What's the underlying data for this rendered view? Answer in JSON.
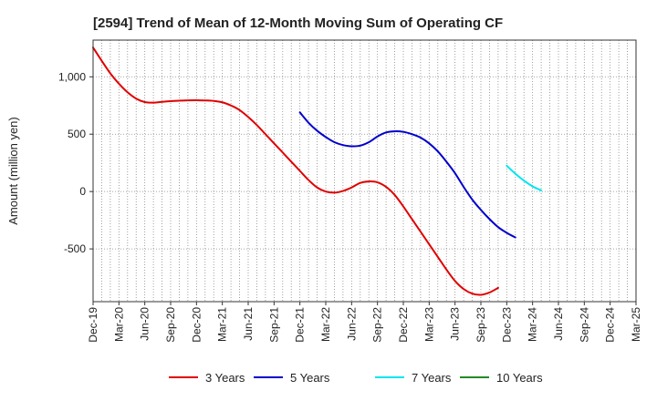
{
  "chart_data": {
    "type": "line",
    "title": "[2594]  Trend of Mean of 12-Month Moving Sum of Operating CF",
    "xlabel": "",
    "ylabel": "Amount (million yen)",
    "ylim": [
      -960,
      1320
    ],
    "yticks": [
      -500,
      0,
      500,
      1000
    ],
    "ytick_labels": [
      "-500",
      "0",
      "500",
      "1,000"
    ],
    "grid": true,
    "legend_position": "bottom",
    "x_months": [
      "Dec-19",
      "Jan-20",
      "Feb-20",
      "Mar-20",
      "Apr-20",
      "May-20",
      "Jun-20",
      "Jul-20",
      "Aug-20",
      "Sep-20",
      "Oct-20",
      "Nov-20",
      "Dec-20",
      "Jan-21",
      "Feb-21",
      "Mar-21",
      "Apr-21",
      "May-21",
      "Jun-21",
      "Jul-21",
      "Aug-21",
      "Sep-21",
      "Oct-21",
      "Nov-21",
      "Dec-21",
      "Jan-22",
      "Feb-22",
      "Mar-22",
      "Apr-22",
      "May-22",
      "Jun-22",
      "Jul-22",
      "Aug-22",
      "Sep-22",
      "Oct-22",
      "Nov-22",
      "Dec-22",
      "Jan-23",
      "Feb-23",
      "Mar-23",
      "Apr-23",
      "May-23",
      "Jun-23",
      "Jul-23",
      "Aug-23",
      "Sep-23",
      "Oct-23",
      "Nov-23",
      "Dec-23",
      "Jan-24",
      "Feb-24",
      "Mar-24",
      "Apr-24",
      "May-24",
      "Jun-24",
      "Jul-24",
      "Aug-24",
      "Sep-24",
      "Oct-24",
      "Nov-24",
      "Dec-24",
      "Jan-25",
      "Feb-25",
      "Mar-25"
    ],
    "x_tick_labels": [
      "Dec-19",
      "Mar-20",
      "Jun-20",
      "Sep-20",
      "Dec-20",
      "Mar-21",
      "Jun-21",
      "Sep-21",
      "Dec-21",
      "Mar-22",
      "Jun-22",
      "Sep-22",
      "Dec-22",
      "Mar-23",
      "Jun-23",
      "Sep-23",
      "Dec-23",
      "Mar-24",
      "Jun-24",
      "Sep-24",
      "Dec-24",
      "Mar-25"
    ],
    "series": [
      {
        "name": "3 Years",
        "color": "#e00000",
        "start_index": 0,
        "values": [
          1255,
          1140,
          1030,
          940,
          865,
          810,
          780,
          775,
          782,
          788,
          792,
          795,
          796,
          794,
          790,
          778,
          750,
          710,
          650,
          580,
          500,
          420,
          340,
          260,
          180,
          100,
          35,
          0,
          -10,
          5,
          35,
          75,
          88,
          80,
          40,
          -30,
          -130,
          -240,
          -350,
          -460,
          -570,
          -680,
          -780,
          -850,
          -890,
          -900,
          -880,
          -840
        ]
      },
      {
        "name": "5 Years",
        "color": "#0000cc",
        "start_index": 24,
        "values": [
          690,
          600,
          530,
          475,
          430,
          405,
          395,
          400,
          430,
          480,
          515,
          525,
          520,
          500,
          470,
          420,
          350,
          260,
          160,
          40,
          -70,
          -160,
          -240,
          -310,
          -360,
          -400
        ]
      },
      {
        "name": "7 Years",
        "color": "#00e5ee",
        "start_index": 48,
        "values": [
          225,
          155,
          95,
          45,
          10
        ]
      },
      {
        "name": "10 Years",
        "color": "#228b22",
        "start_index": 48,
        "values": []
      }
    ]
  }
}
